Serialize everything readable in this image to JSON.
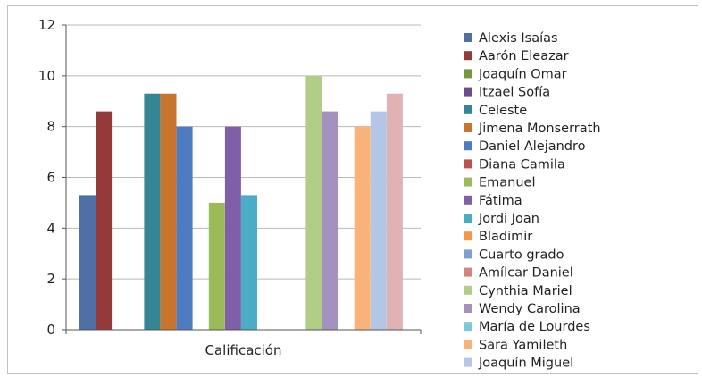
{
  "chart_data": {
    "type": "bar",
    "categories": [
      "Calificación"
    ],
    "xlabel": "Calificación",
    "ylabel": "",
    "ylim": [
      0,
      12
    ],
    "yticks": [
      0,
      2,
      4,
      6,
      8,
      10,
      12
    ],
    "grid": true,
    "legend_position": "right",
    "series": [
      {
        "name": "Alexis Isaías",
        "value": 5.3,
        "color": "#4f6fa6"
      },
      {
        "name": "Aarón Eleazar",
        "value": 8.6,
        "color": "#953a3a"
      },
      {
        "name": "Joaquín Omar",
        "value": null,
        "color": "#77983a"
      },
      {
        "name": "Itzael Sofía",
        "value": null,
        "color": "#6a4d8c"
      },
      {
        "name": "Celeste",
        "value": 9.3,
        "color": "#358594"
      },
      {
        "name": "Jimena Monserrath",
        "value": 9.3,
        "color": "#c7742e"
      },
      {
        "name": "Daniel Alejandro",
        "value": 8.0,
        "color": "#4f7bc0"
      },
      {
        "name": "Diana Camila",
        "value": null,
        "color": "#c0504d"
      },
      {
        "name": "Emanuel",
        "value": 5.0,
        "color": "#9bbb59"
      },
      {
        "name": "Fátima",
        "value": 8.0,
        "color": "#7f5fa8"
      },
      {
        "name": "Jordi Joan",
        "value": 5.3,
        "color": "#4bacc6"
      },
      {
        "name": "Bladimir",
        "value": null,
        "color": "#f79646"
      },
      {
        "name": "Cuarto grado",
        "value": null,
        "color": "#7f9dd0"
      },
      {
        "name": "Amílcar Daniel",
        "value": null,
        "color": "#d08482"
      },
      {
        "name": "Cynthia Mariel",
        "value": 10.0,
        "color": "#b2cd85"
      },
      {
        "name": "Wendy Carolina",
        "value": 8.6,
        "color": "#a591c0"
      },
      {
        "name": "María de Lourdes",
        "value": null,
        "color": "#7fc7da"
      },
      {
        "name": "Sara Yamileth",
        "value": 8.0,
        "color": "#f9b27a"
      },
      {
        "name": "Joaquín Miguel",
        "value": 8.6,
        "color": "#b3c6e6"
      },
      {
        "name": "",
        "value": 9.3,
        "color": "#e0b3b2"
      }
    ]
  }
}
